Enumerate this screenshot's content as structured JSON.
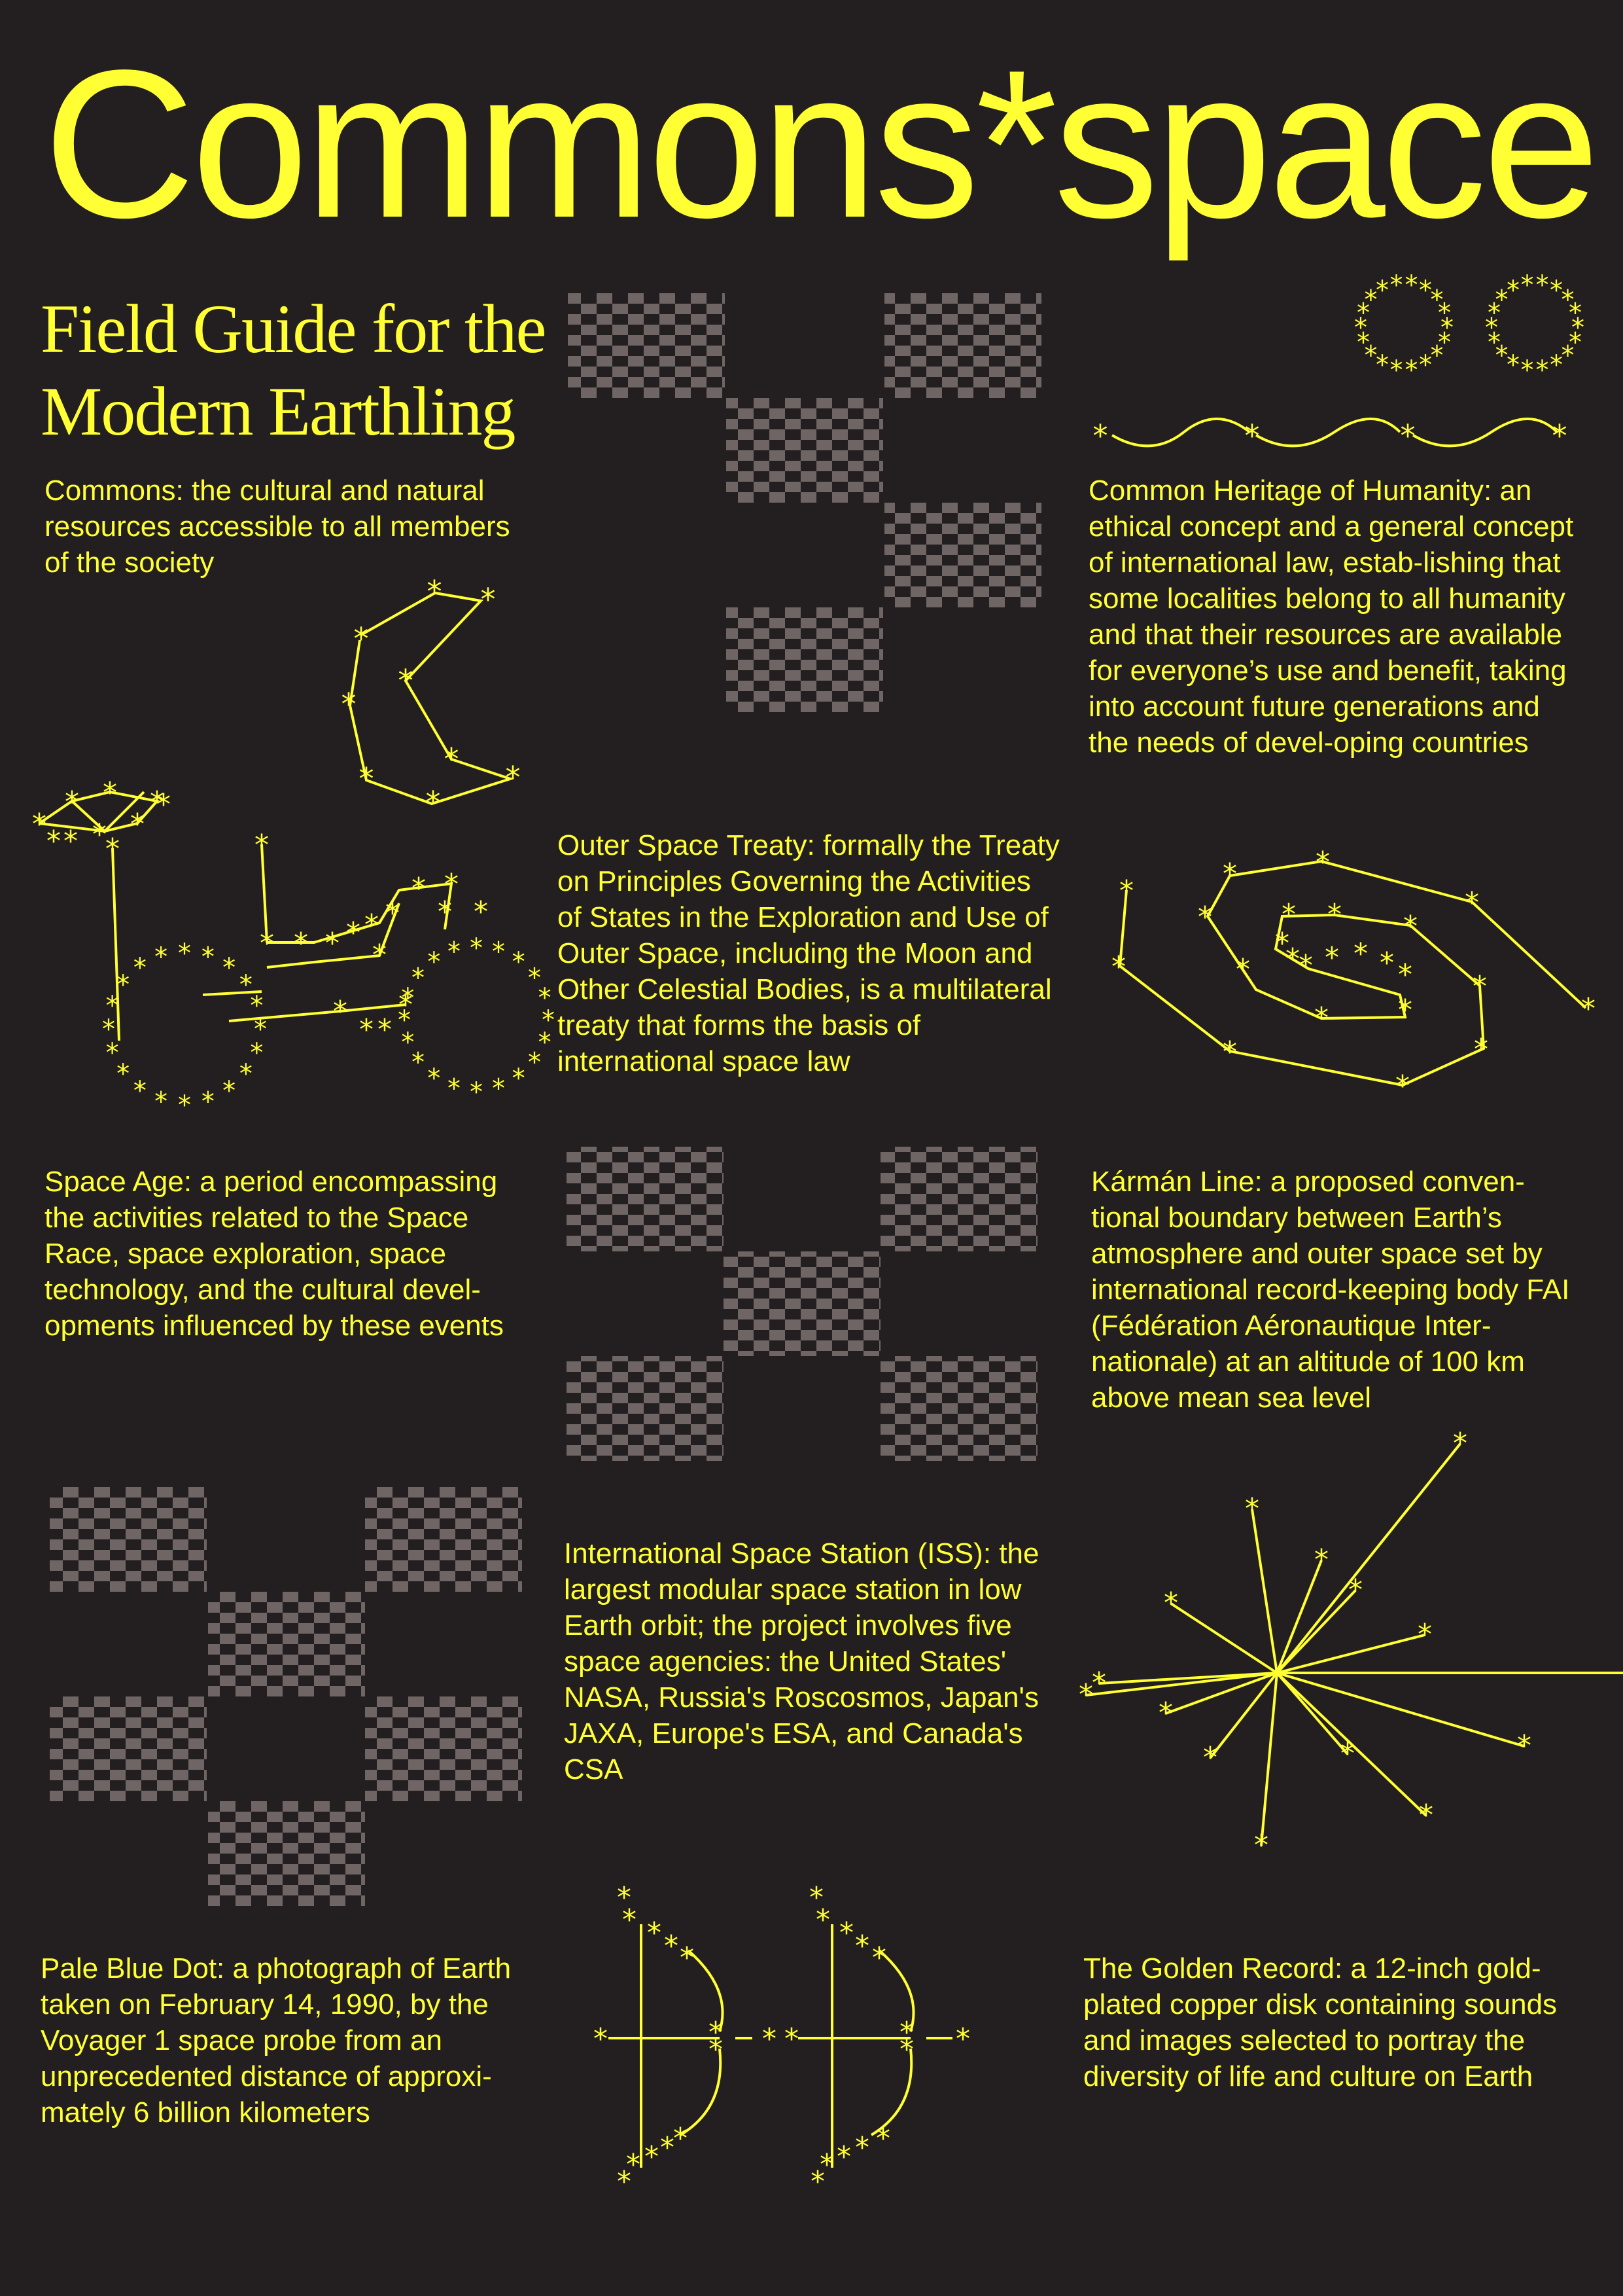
{
  "title": "Commons*space",
  "subtitle": {
    "line1": "Field Guide for the",
    "line2": "Modern Earthling"
  },
  "definitions": [
    {
      "id": "commons",
      "text": "Commons: the cultural and natural resources accessible to all members of the society"
    },
    {
      "id": "heritage",
      "text": "Common Heritage of Humanity: an ethical concept and a general concept of international law, estab-lishing that some localities belong to all humanity and that their resources are available for everyone’s use and benefit, taking into account future generations and the needs of devel-oping countries"
    },
    {
      "id": "treaty",
      "text": "Outer Space Treaty: formally the Treaty on Principles Governing the Activities of States in the Exploration and Use of Outer Space, including the Moon and Other Celestial Bodies, is a multilateral treaty that forms the basis of international space law"
    },
    {
      "id": "space-age",
      "text": "Space Age: a period encompassing the activities related to the Space Race, space exploration, space technology, and the cultural devel-opments influenced by these events"
    },
    {
      "id": "karman",
      "text": "Kármán Line: a proposed conven-tional boundary between Earth’s atmosphere and outer space set by international record-keeping body FAI (Fédération Aéronautique Inter-nationale) at an altitude of 100 km above mean sea level"
    },
    {
      "id": "iss",
      "text": "International Space Station (ISS): the largest modular space station in low Earth orbit; the project involves five space agencies: the United States' NASA, Russia's Roscosmos, Japan's JAXA, Europe's ESA, and Canada's CSA"
    },
    {
      "id": "pale-blue-dot",
      "text": "Pale Blue Dot: a photograph of Earth taken on February 14, 1990, by the Voyager 1 space probe from an unprecedented distance of approxi-mately 6 billion kilometers"
    },
    {
      "id": "golden-record",
      "text": "The Golden Record: a 12-inch gold-plated copper disk containing sounds and images selected to portray the diversity of life and culture on Earth"
    }
  ],
  "colors": {
    "background": "#231f20",
    "accent": "#ffff33",
    "checker": "#6e6564"
  }
}
